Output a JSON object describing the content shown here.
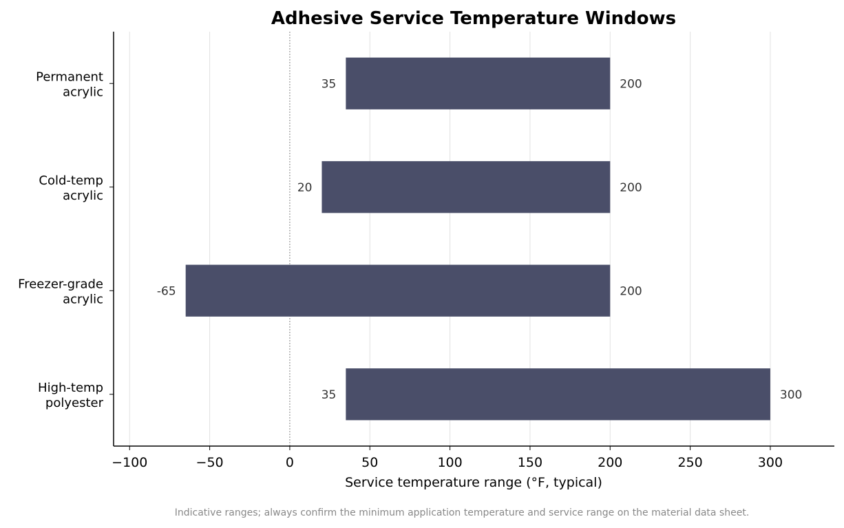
{
  "chart_data": {
    "type": "bar",
    "orientation": "horizontal",
    "title": "Adhesive Service Temperature Windows",
    "xlabel": "Service temperature range (°F, typical)",
    "ylabel": "",
    "xlim": [
      -110,
      340
    ],
    "xticks": [
      -100,
      -50,
      0,
      50,
      100,
      150,
      200,
      250,
      300
    ],
    "xtick_labels": [
      "−100",
      "−50",
      "0",
      "50",
      "100",
      "150",
      "200",
      "250",
      "300"
    ],
    "grid": "vertical",
    "reference_line": 0,
    "bar_color": "#4a4e69",
    "categories": [
      {
        "label_lines": [
          "Permanent",
          "acrylic"
        ],
        "min": 35,
        "max": 200,
        "min_label": "35",
        "max_label": "200"
      },
      {
        "label_lines": [
          "Cold-temp",
          "acrylic"
        ],
        "min": 20,
        "max": 200,
        "min_label": "20",
        "max_label": "200"
      },
      {
        "label_lines": [
          "Freezer-grade",
          "acrylic"
        ],
        "min": -65,
        "max": 200,
        "min_label": "-65",
        "max_label": "200"
      },
      {
        "label_lines": [
          "High-temp",
          "polyester"
        ],
        "min": 35,
        "max": 300,
        "min_label": "35",
        "max_label": "300"
      }
    ],
    "annotation": "Indicative ranges; always confirm the minimum application temperature and service range on the material data sheet."
  }
}
